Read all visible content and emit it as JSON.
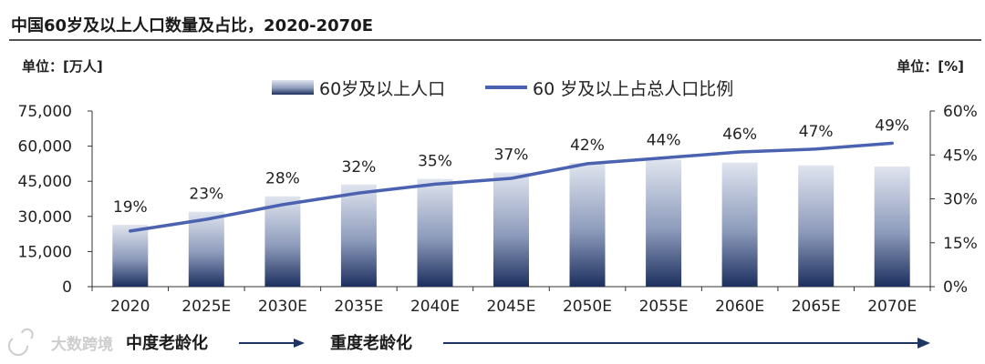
{
  "chart_data": {
    "type": "bar",
    "title": "中国60岁及以上人口数量及占比，2020-2070E",
    "left_unit": "单位：[万人]",
    "right_unit": "单位：[%]",
    "categories": [
      "2020",
      "2025E",
      "2030E",
      "2035E",
      "2040E",
      "2045E",
      "2050E",
      "2055E",
      "2060E",
      "2065E",
      "2070E"
    ],
    "series": [
      {
        "name": "60岁及以上人口",
        "type": "bar",
        "axis": "left",
        "values": [
          26400,
          32000,
          38600,
          43600,
          46000,
          48700,
          52800,
          54300,
          53000,
          51800,
          51300
        ]
      },
      {
        "name": "60 岁及以上占总人口比例",
        "type": "line",
        "axis": "right",
        "values": [
          19,
          23,
          28,
          32,
          35,
          37,
          42,
          44,
          46,
          47,
          49
        ],
        "labels": [
          "19%",
          "23%",
          "28%",
          "32%",
          "35%",
          "37%",
          "42%",
          "44%",
          "46%",
          "47%",
          "49%"
        ]
      }
    ],
    "ylim_left": [
      0,
      75000
    ],
    "yticks_left": [
      0,
      15000,
      30000,
      45000,
      60000,
      75000
    ],
    "ytick_labels_left": [
      "0",
      "15,000",
      "30,000",
      "45,000",
      "60,000",
      "75,000"
    ],
    "ylim_right": [
      0,
      60
    ],
    "yticks_right": [
      0,
      15,
      30,
      45,
      60
    ],
    "ytick_labels_right": [
      "0%",
      "15%",
      "30%",
      "45%",
      "60%"
    ],
    "stages": [
      {
        "label": "中度老龄化",
        "from_category": "2020",
        "to_category": "2035E"
      },
      {
        "label": "重度老龄化",
        "from_category": "2035E",
        "to_category": "2070E"
      }
    ],
    "legend_position": "top-center",
    "watermark": "大数跨境",
    "colors": {
      "bar_top": "#dfe4ee",
      "bar_bottom": "#1c2f5e",
      "line": "#4a62b0",
      "axis": "#333333",
      "title_rule": "#1a1a1a",
      "stage_arrow": "#1f3561"
    }
  }
}
